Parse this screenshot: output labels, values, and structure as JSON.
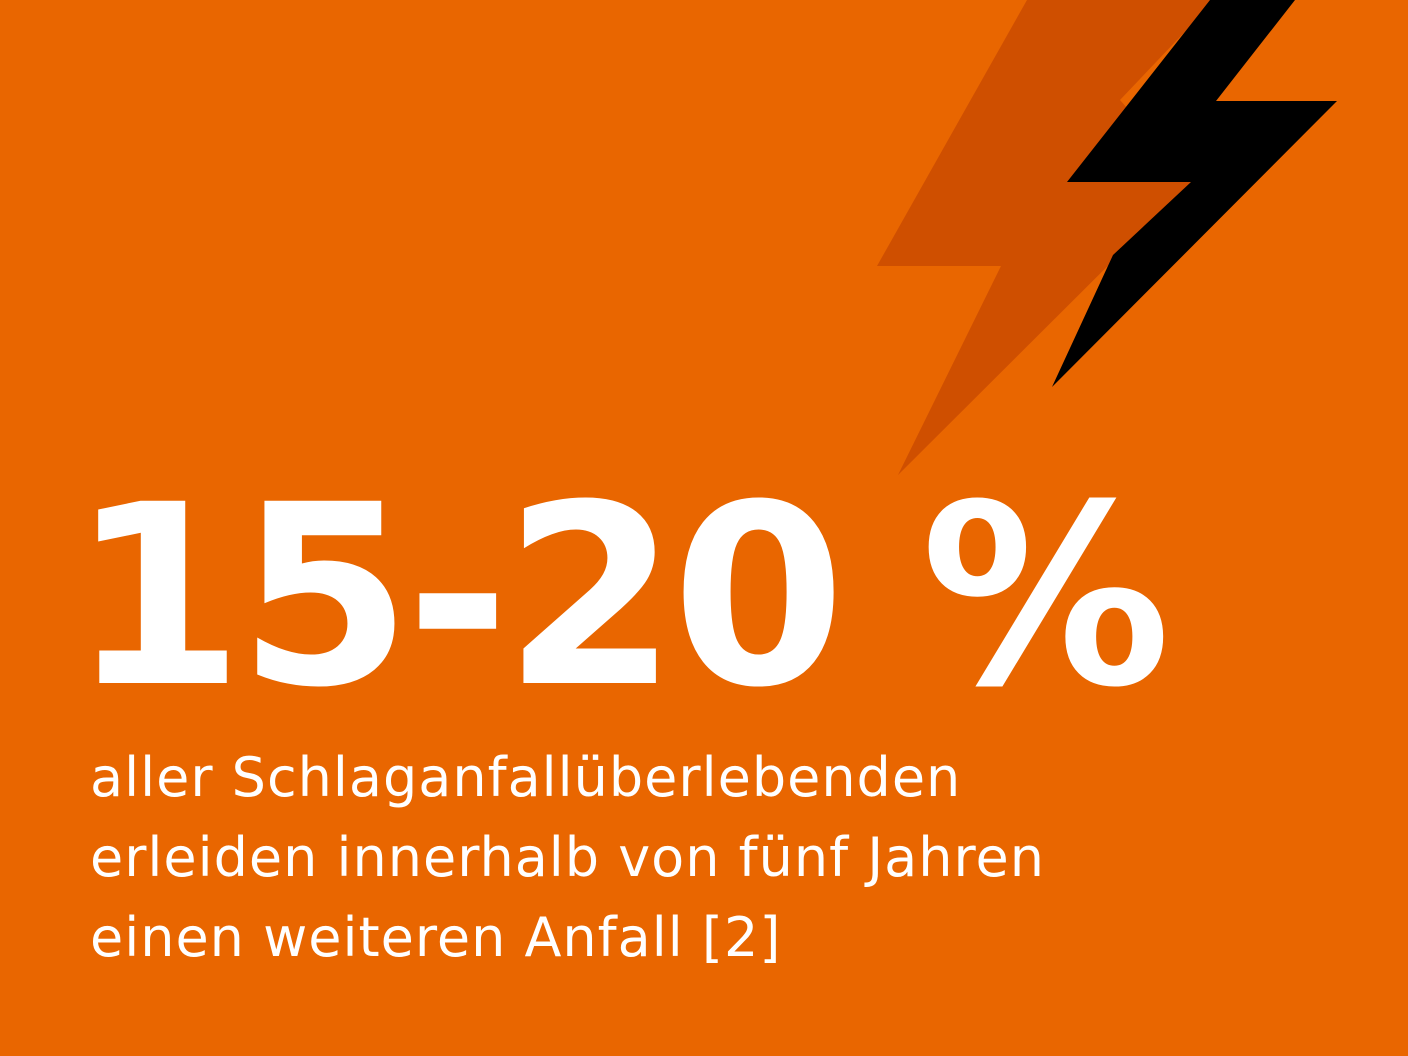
{
  "colors": {
    "background": "#e96600",
    "bolt_shadow": "#cf4f00",
    "bolt": "#000000",
    "text": "#ffffff"
  },
  "icons": [
    "lightning-bolt-shadow-icon",
    "lightning-bolt-icon"
  ],
  "headline": "15-20 %",
  "description": {
    "lines": [
      "aller Schlaganfallüberlebenden",
      "erleiden innerhalb von fünf Jahren",
      "einen weiteren Anfall [2]"
    ]
  }
}
